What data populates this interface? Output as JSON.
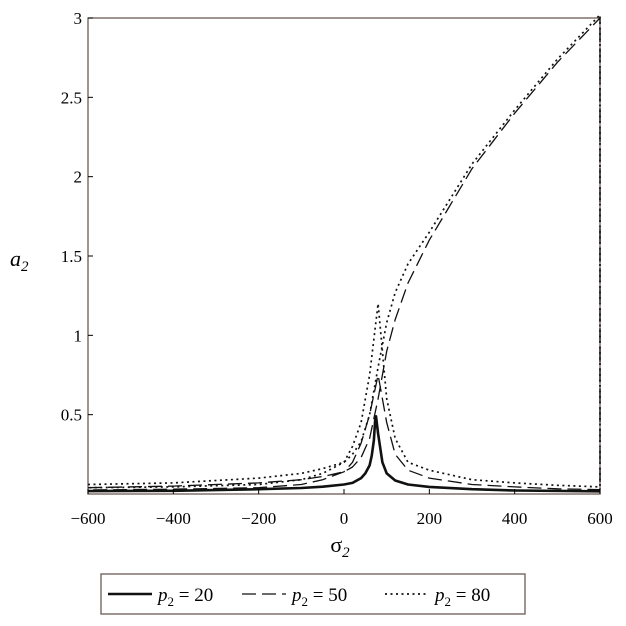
{
  "chart_data": {
    "type": "line",
    "xlabel": "σ",
    "xlabel_sub": "2",
    "ylabel": "a",
    "ylabel_sub": "2",
    "xlim": [
      -600,
      600
    ],
    "ylim": [
      0,
      3
    ],
    "xticks": [
      -600,
      -400,
      -200,
      0,
      200,
      400,
      600
    ],
    "xtick_labels": [
      "−600",
      "−400",
      "−200",
      "0",
      "200",
      "400",
      "600"
    ],
    "yticks": [
      0.5,
      1,
      1.5,
      2,
      2.5,
      3
    ],
    "ytick_labels": [
      "0.5",
      "1",
      "1.5",
      "2",
      "2.5",
      "3"
    ],
    "grid": false,
    "legend_position": "bottom",
    "series": [
      {
        "name": "p2 = 20",
        "legend_var": "p",
        "legend_sub": "2",
        "legend_val": " = 20",
        "style": "solid",
        "x": [
          -600,
          -400,
          -200,
          -100,
          -50,
          0,
          20,
          40,
          50,
          60,
          65,
          70,
          73,
          75,
          80,
          90,
          100,
          120,
          150,
          200,
          300,
          400,
          600
        ],
        "y": [
          0.018,
          0.02,
          0.03,
          0.038,
          0.046,
          0.06,
          0.07,
          0.1,
          0.13,
          0.18,
          0.24,
          0.34,
          0.46,
          0.49,
          0.38,
          0.2,
          0.13,
          0.085,
          0.06,
          0.045,
          0.03,
          0.022,
          0.017
        ]
      },
      {
        "name": "p2 = 50",
        "legend_var": "p",
        "legend_sub": "2",
        "legend_val": " = 50",
        "style": "dashed",
        "x": [
          -600,
          -400,
          -200,
          -100,
          -50,
          0,
          20,
          40,
          60,
          80,
          100,
          120,
          150,
          200,
          300,
          400,
          500,
          600,
          600,
          500,
          400,
          300,
          200,
          150,
          120,
          100,
          90,
          80,
          60,
          40,
          20,
          0,
          -50,
          -100,
          -200,
          -400,
          -600
        ],
        "y": [
          0.04,
          0.05,
          0.07,
          0.09,
          0.11,
          0.14,
          0.17,
          0.23,
          0.35,
          0.6,
          0.9,
          1.1,
          1.33,
          1.6,
          2.05,
          2.4,
          2.72,
          3.0,
          0.028,
          0.033,
          0.045,
          0.06,
          0.1,
          0.15,
          0.25,
          0.45,
          0.6,
          0.75,
          0.5,
          0.32,
          0.2,
          0.14,
          0.09,
          0.06,
          0.04,
          0.03,
          0.025
        ]
      },
      {
        "name": "p2 = 80",
        "legend_var": "p",
        "legend_sub": "2",
        "legend_val": " = 80",
        "style": "dotted",
        "x": [
          -600,
          -400,
          -200,
          -100,
          -50,
          0,
          20,
          40,
          60,
          80,
          100,
          120,
          150,
          200,
          300,
          400,
          500,
          600,
          600,
          500,
          400,
          300,
          200,
          150,
          120,
          100,
          90,
          80,
          60,
          40,
          20,
          0,
          -50,
          -100,
          -200,
          -400,
          -600
        ],
        "y": [
          0.06,
          0.07,
          0.1,
          0.13,
          0.16,
          0.2,
          0.25,
          0.33,
          0.5,
          0.8,
          1.08,
          1.27,
          1.45,
          1.65,
          2.08,
          2.42,
          2.74,
          3.02,
          0.045,
          0.055,
          0.07,
          0.09,
          0.15,
          0.2,
          0.35,
          0.6,
          0.9,
          1.2,
          0.75,
          0.45,
          0.3,
          0.2,
          0.13,
          0.09,
          0.06,
          0.045,
          0.04
        ]
      }
    ]
  }
}
